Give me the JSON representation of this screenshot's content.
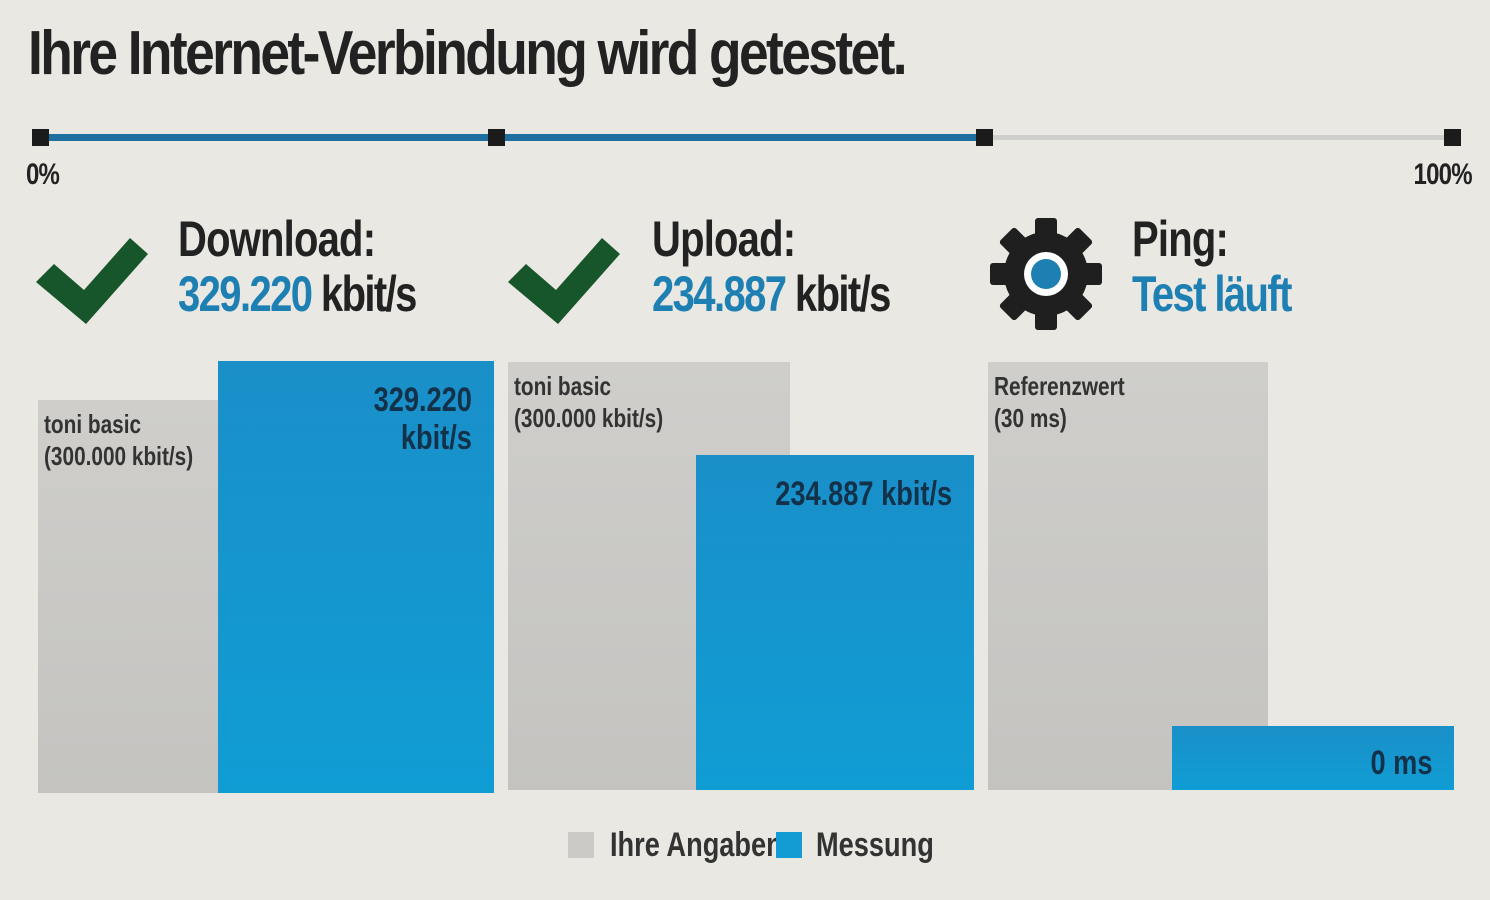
{
  "title": "Ihre Internet-Verbindung wird getestet.",
  "progress": {
    "start_label": "0%",
    "end_label": "100%",
    "value_fraction": 0.66,
    "steps_completed": 2,
    "steps_total": 3
  },
  "metrics": [
    {
      "label": "Download:",
      "value_number": "329.220",
      "value_unit": "kbit/s",
      "status_icon": "checkmark-icon",
      "state": "done"
    },
    {
      "label": "Upload:",
      "value_number": "234.887",
      "value_unit": "kbit/s",
      "status_icon": "checkmark-icon",
      "state": "done"
    },
    {
      "label": "Ping:",
      "status_text": "Test läuft",
      "status_icon": "gear-icon",
      "state": "running"
    }
  ],
  "chart_data": {
    "type": "bar",
    "groups": [
      {
        "metric": "Download",
        "reference": {
          "label_line1": "toni basic",
          "label_line2": "(300.000 kbit/s)",
          "value": 300000
        },
        "measurement": {
          "label_line1": "329.220",
          "label_line2": "kbit/s",
          "value": 329220
        }
      },
      {
        "metric": "Upload",
        "reference": {
          "label_line1": "toni basic",
          "label_line2": "(300.000 kbit/s)",
          "value": 300000
        },
        "measurement": {
          "label_line1": "234.887 kbit/s",
          "label_line2": "",
          "value": 234887
        }
      },
      {
        "metric": "Ping",
        "reference": {
          "label_line1": "Referenzwert",
          "label_line2": "(30 ms)",
          "value": 30
        },
        "measurement": {
          "label_line1": "0 ms",
          "label_line2": "",
          "value": 0
        }
      }
    ],
    "legend": [
      {
        "name": "Ihre Angaben",
        "color": "#cbcac7"
      },
      {
        "name": "Messung",
        "color": "#139bd3"
      }
    ],
    "legend_position": "bottom-center"
  },
  "colors": {
    "accent": "#1e7fb3",
    "bar_measure": "#139bd3",
    "bar_reference": "#cbcac7",
    "check": "#17552b",
    "progress": "#1e6ea0"
  }
}
